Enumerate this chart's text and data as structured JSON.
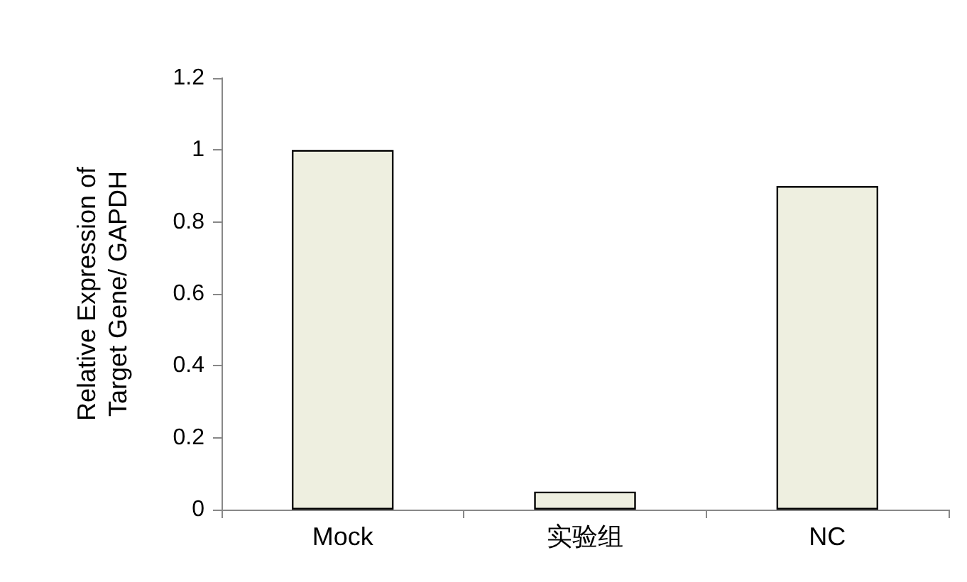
{
  "chart_data": {
    "type": "bar",
    "ylabel": "Relative Expression of\nTarget Gene/ GAPDH",
    "categories": [
      "Mock",
      "实验组",
      "NC"
    ],
    "values": [
      1,
      0.05,
      0.9
    ],
    "color": "#eeefe0",
    "ylim": [
      0,
      1.2
    ],
    "yticks": [
      0,
      0.2,
      0.4,
      0.6,
      0.8,
      1,
      1.2
    ],
    "grid": false
  }
}
